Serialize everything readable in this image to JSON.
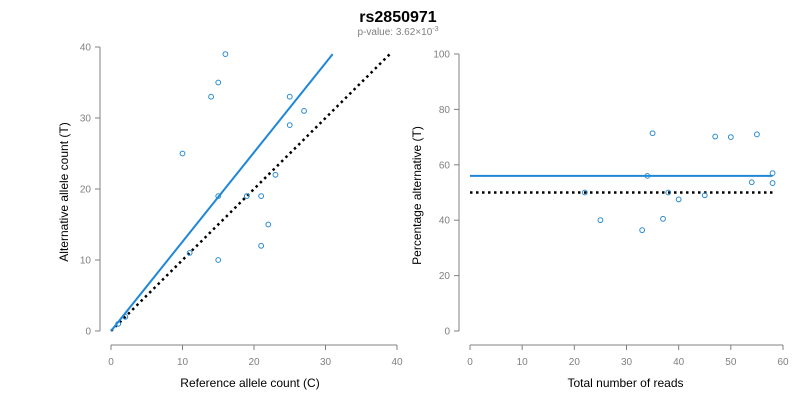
{
  "title": "rs2850971",
  "subtitle_prefix": "p-value: 3.62×10",
  "subtitle_exp": "-3",
  "colors": {
    "fit": "#1f87d6",
    "points": "#2a8bd0",
    "expected": "#000000",
    "axis": "#808080"
  },
  "chart_data": [
    {
      "type": "scatter",
      "xlabel": "Reference allele count (C)",
      "ylabel": "Alternative allele count (T)",
      "xlim": [
        0,
        40
      ],
      "ylim": [
        0,
        40
      ],
      "xticks": [
        0,
        10,
        20,
        30,
        40
      ],
      "yticks": [
        0,
        10,
        20,
        30,
        40
      ],
      "points": [
        {
          "x": 1,
          "y": 1
        },
        {
          "x": 2,
          "y": 2
        },
        {
          "x": 10,
          "y": 25
        },
        {
          "x": 11,
          "y": 11
        },
        {
          "x": 14,
          "y": 33
        },
        {
          "x": 15,
          "y": 35
        },
        {
          "x": 15,
          "y": 19
        },
        {
          "x": 15,
          "y": 10
        },
        {
          "x": 16,
          "y": 39
        },
        {
          "x": 19,
          "y": 19
        },
        {
          "x": 21,
          "y": 19
        },
        {
          "x": 21,
          "y": 12
        },
        {
          "x": 22,
          "y": 15
        },
        {
          "x": 23,
          "y": 22
        },
        {
          "x": 25,
          "y": 33
        },
        {
          "x": 25,
          "y": 29
        },
        {
          "x": 27,
          "y": 31
        }
      ],
      "fit_line": {
        "x": [
          0,
          31
        ],
        "y": [
          0,
          39
        ]
      },
      "expected_line": {
        "x": [
          0,
          39
        ],
        "y": [
          0,
          39
        ]
      }
    },
    {
      "type": "scatter",
      "xlabel": "Total number of reads",
      "ylabel": "Percentage alternative (T)",
      "xlim": [
        0,
        60
      ],
      "ylim": [
        0,
        100
      ],
      "xticks": [
        0,
        10,
        20,
        30,
        40,
        50,
        60
      ],
      "yticks": [
        0,
        20,
        40,
        60,
        80,
        100
      ],
      "points": [
        {
          "x": 22,
          "y": 50
        },
        {
          "x": 25,
          "y": 40
        },
        {
          "x": 33,
          "y": 36.4
        },
        {
          "x": 34,
          "y": 56
        },
        {
          "x": 35,
          "y": 71.4
        },
        {
          "x": 37,
          "y": 40.5
        },
        {
          "x": 38,
          "y": 50
        },
        {
          "x": 40,
          "y": 47.5
        },
        {
          "x": 45,
          "y": 49
        },
        {
          "x": 47,
          "y": 70.2
        },
        {
          "x": 50,
          "y": 70
        },
        {
          "x": 54,
          "y": 53.7
        },
        {
          "x": 55,
          "y": 71
        },
        {
          "x": 58,
          "y": 53.4
        },
        {
          "x": 58,
          "y": 57
        }
      ],
      "fit_line": {
        "x": [
          0,
          58
        ],
        "y": [
          56,
          56
        ]
      },
      "expected_line": {
        "x": [
          0,
          58
        ],
        "y": [
          50,
          50
        ]
      }
    }
  ]
}
